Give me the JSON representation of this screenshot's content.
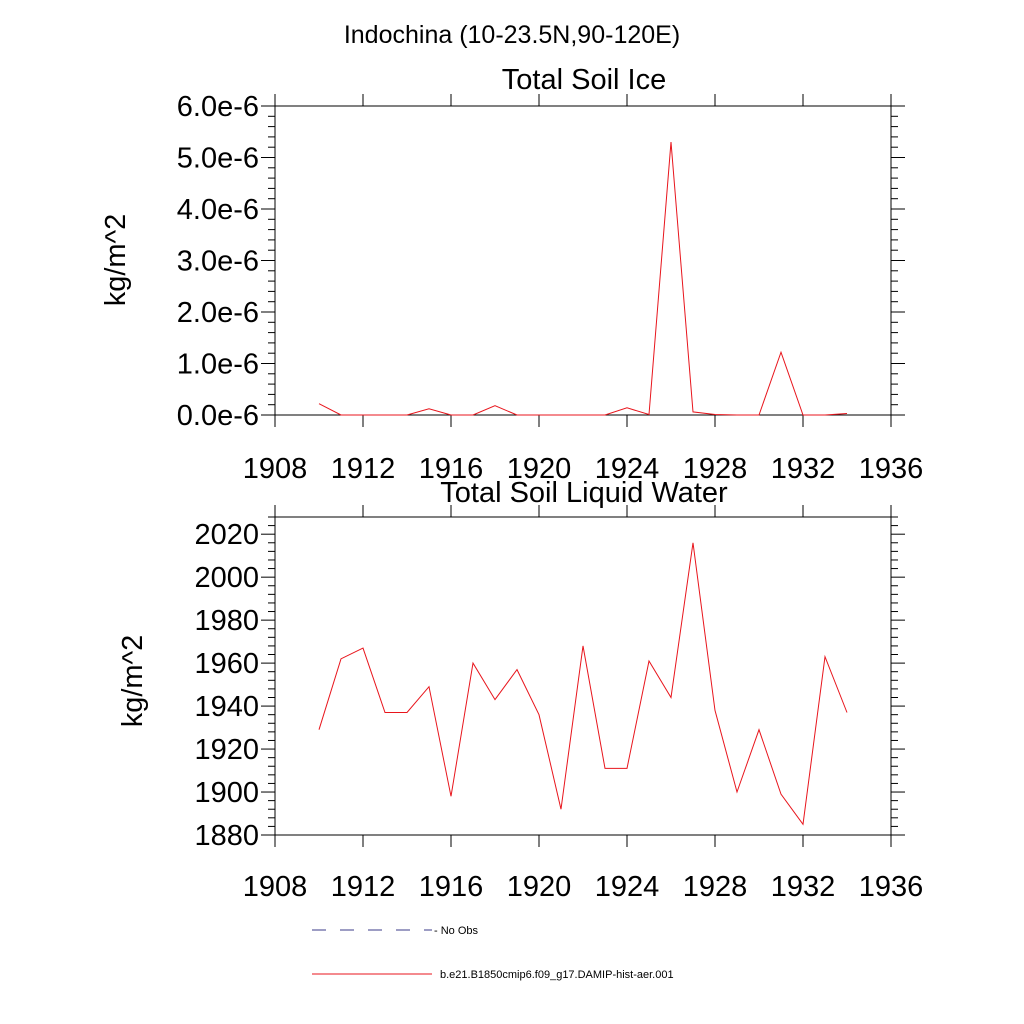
{
  "figure": {
    "title": "Indochina (10-23.5N,90-120E)"
  },
  "legend": [
    {
      "label": "No Obs",
      "color": "#3b3b8a",
      "dash": true
    },
    {
      "label": "b.e21.B1850cmip6.f09_g17.DAMIP-hist-aer.001",
      "color": "#e8151c",
      "dash": false
    }
  ],
  "chart_data": [
    {
      "type": "line",
      "title": "Total Soil Ice",
      "xlabel": "",
      "ylabel": "kg/m^2",
      "xlim": [
        1908,
        1936
      ],
      "ylim": [
        0.0,
        6e-06
      ],
      "xticks": [
        "1908",
        "1912",
        "1916",
        "1920",
        "1924",
        "1928",
        "1932",
        "1936"
      ],
      "yticks": [
        "0.0e-6",
        "1.0e-6",
        "2.0e-6",
        "3.0e-6",
        "4.0e-6",
        "5.0e-6",
        "6.0e-6"
      ],
      "ytick_values": [
        0,
        1e-06,
        2e-06,
        3e-06,
        4e-06,
        5e-06,
        6e-06
      ],
      "series": [
        {
          "name": "b.e21.B1850cmip6.f09_g17.DAMIP-hist-aer.001",
          "color": "#e8151c",
          "x": [
            1910,
            1911,
            1912,
            1913,
            1914,
            1915,
            1916,
            1917,
            1918,
            1919,
            1920,
            1921,
            1922,
            1923,
            1924,
            1925,
            1926,
            1927,
            1928,
            1929,
            1930,
            1931,
            1932,
            1933,
            1934
          ],
          "values": [
            2.2e-07,
            0.0,
            0.0,
            0.0,
            0.0,
            1.2e-07,
            0.0,
            0.0,
            1.8e-07,
            0.0,
            0.0,
            0.0,
            0.0,
            0.0,
            1.4e-07,
            1e-08,
            5.3e-06,
            6e-08,
            1e-08,
            0.0,
            0.0,
            1.22e-06,
            0.0,
            0.0,
            3e-08
          ]
        }
      ]
    },
    {
      "type": "line",
      "title": "Total Soil Liquid Water",
      "xlabel": "",
      "ylabel": "kg/m^2",
      "xlim": [
        1908,
        1936
      ],
      "ylim": [
        1880,
        2028
      ],
      "xticks": [
        "1908",
        "1912",
        "1916",
        "1920",
        "1924",
        "1928",
        "1932",
        "1936"
      ],
      "yticks": [
        "1880",
        "1900",
        "1920",
        "1940",
        "1960",
        "1980",
        "2000",
        "2020"
      ],
      "ytick_values": [
        1880,
        1900,
        1920,
        1940,
        1960,
        1980,
        2000,
        2020
      ],
      "series": [
        {
          "name": "b.e21.B1850cmip6.f09_g17.DAMIP-hist-aer.001",
          "color": "#e8151c",
          "x": [
            1910,
            1911,
            1912,
            1913,
            1914,
            1915,
            1916,
            1917,
            1918,
            1919,
            1920,
            1921,
            1922,
            1923,
            1924,
            1925,
            1926,
            1927,
            1928,
            1929,
            1930,
            1931,
            1932,
            1933,
            1934
          ],
          "values": [
            1929,
            1962,
            1967,
            1937,
            1937,
            1949,
            1898,
            1960,
            1943,
            1957,
            1936,
            1892,
            1968,
            1911,
            1911,
            1961,
            1944,
            2016,
            1938,
            1900,
            1929,
            1899,
            1885,
            1963,
            1937
          ]
        }
      ]
    }
  ]
}
